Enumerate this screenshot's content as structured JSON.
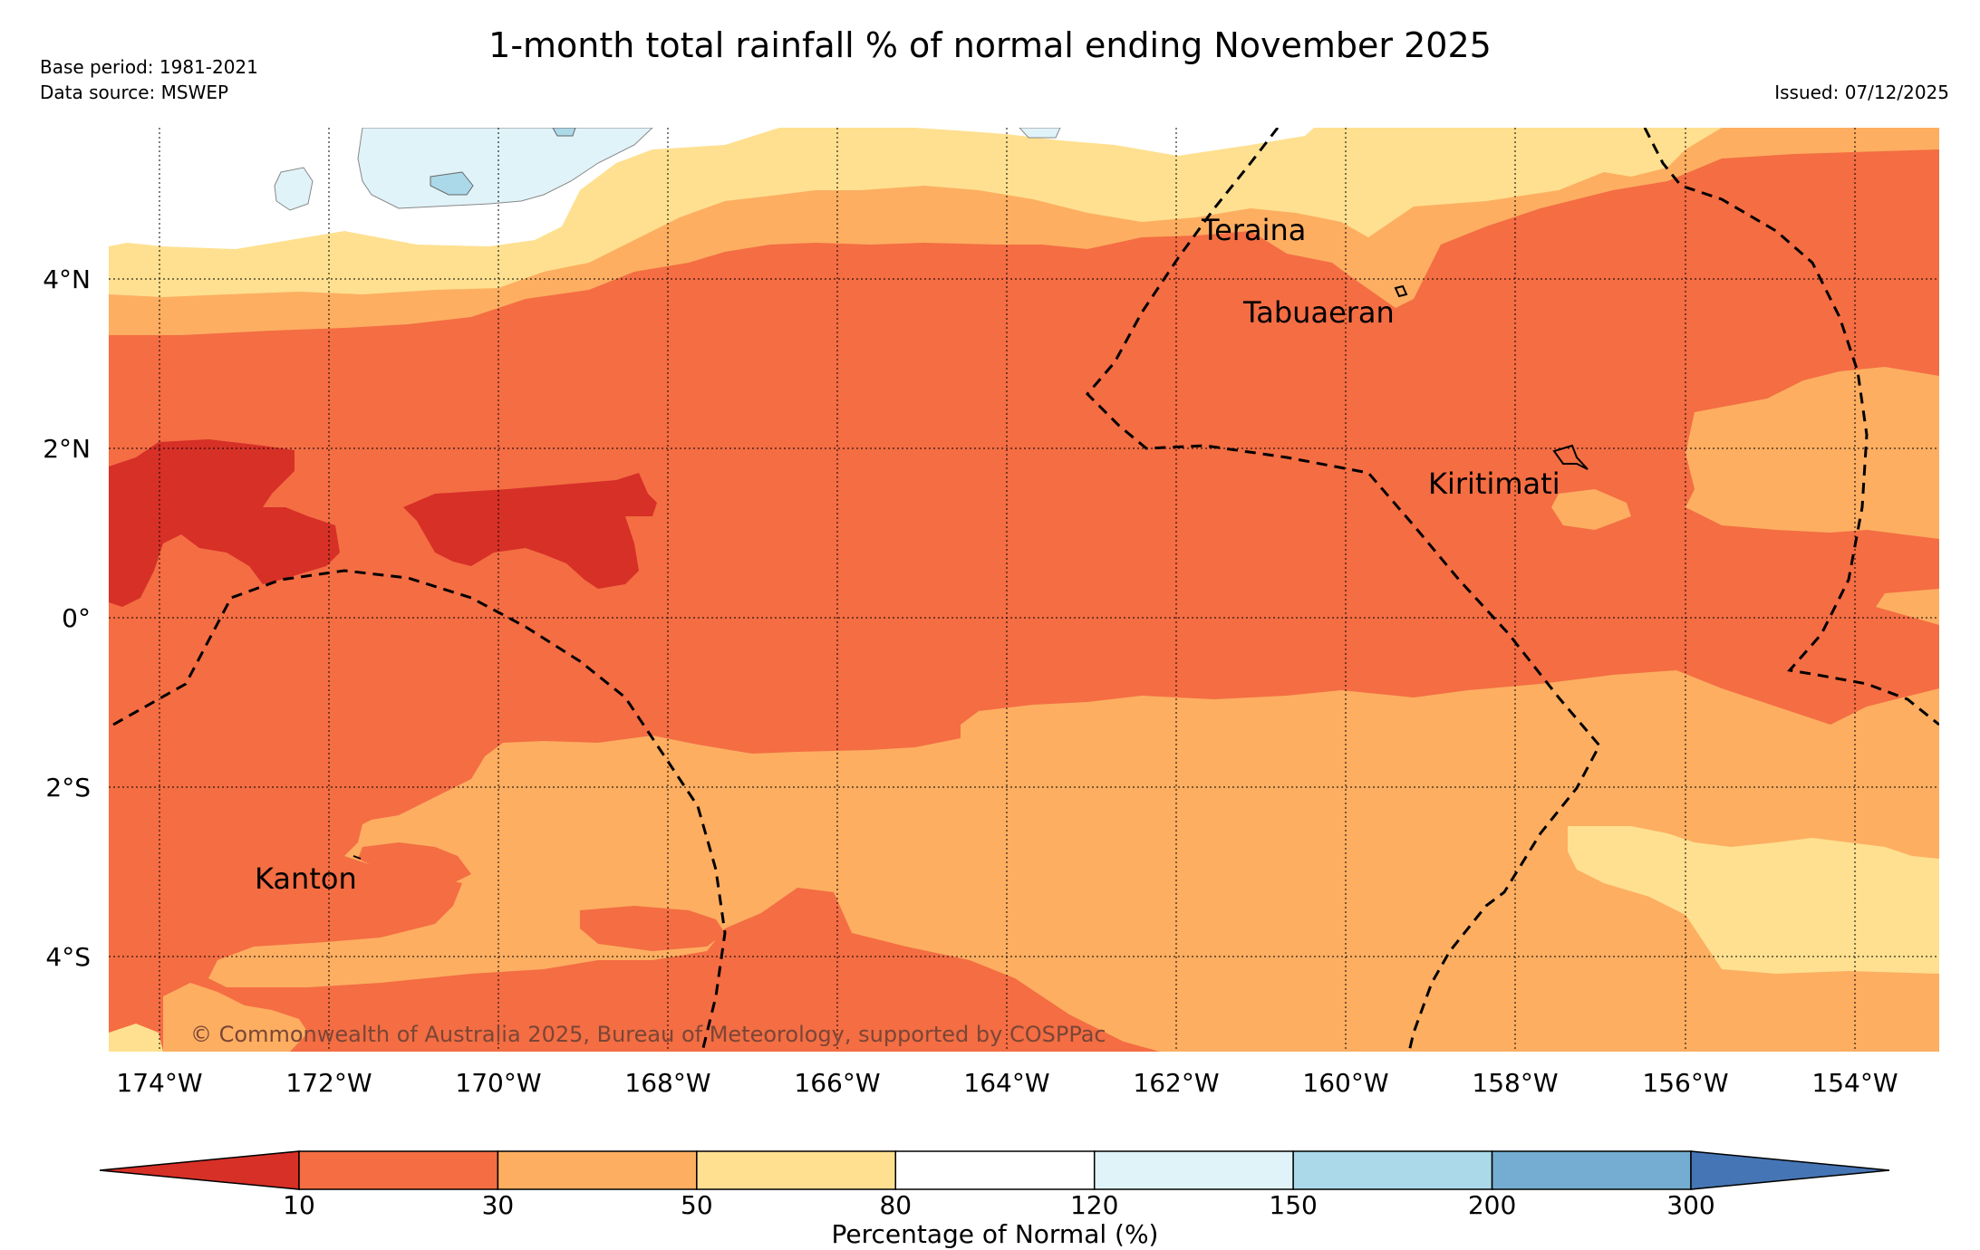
{
  "title": "1-month total rainfall % of normal ending November 2025",
  "meta": {
    "base_period": "Base period: 1981-2021",
    "data_source": "Data source: MSWEP",
    "issued": "Issued: 07/12/2025"
  },
  "axes": {
    "x_ticks": [
      "174°W",
      "172°W",
      "170°W",
      "168°W",
      "166°W",
      "164°W",
      "162°W",
      "160°W",
      "158°W",
      "156°W",
      "154°W"
    ],
    "y_ticks": [
      "4°N",
      "2°N",
      "0°",
      "2°S",
      "4°S"
    ]
  },
  "places": {
    "teraina": "Teraina",
    "tabuaeran": "Tabuaeran",
    "kiritimati": "Kiritimati",
    "kanton": "Kanton"
  },
  "copyright": "© Commonwealth of Australia 2025, Bureau of Meteorology, supported by COSPPac",
  "legend": {
    "title": "Percentage of Normal (%)",
    "ticks": [
      "10",
      "30",
      "50",
      "80",
      "120",
      "150",
      "200",
      "300"
    ],
    "colors": [
      "#d73027",
      "#f46d43",
      "#fdae61",
      "#fee090",
      "#ffffff",
      "#e0f3f8",
      "#abd9e9",
      "#74add1",
      "#4575b4"
    ]
  }
}
